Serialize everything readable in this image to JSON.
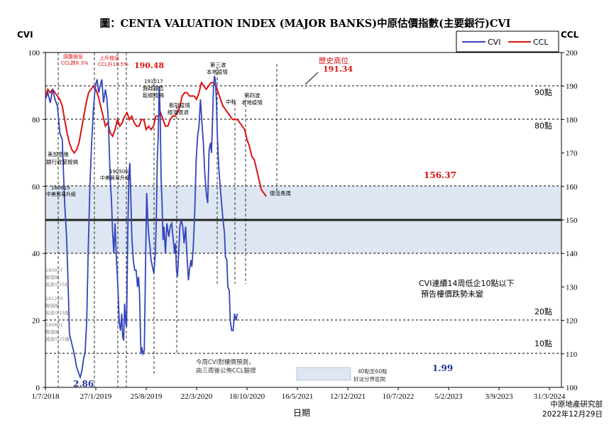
{
  "chart_data": {
    "type": "line",
    "title": "圖：CENTA VALUATION INDEX (MAJOR BANKS)中原估價指數(主要銀行)CVI",
    "xlabel": "日期",
    "y_left_label": "CVI",
    "y_right_label": "CCL",
    "ylim_left": [
      0,
      100
    ],
    "ylim_right": [
      100,
      200
    ],
    "y_left_ticks": [
      "0",
      "20",
      "40",
      "60",
      "80",
      "100"
    ],
    "y_right_ticks": [
      "100",
      "110",
      "120",
      "130",
      "140",
      "150",
      "160",
      "170",
      "180",
      "190",
      "200"
    ],
    "x_ticks": [
      "1/7/2018",
      "27/1/2019",
      "25/8/2019",
      "22/3/2020",
      "18/10/2020",
      "16/5/2021",
      "12/12/2021",
      "10/7/2022",
      "5/2/2023",
      "3/9/2023",
      "31/3/2024"
    ],
    "x_tick_days": [
      0,
      210,
      420,
      630,
      840,
      1050,
      1260,
      1470,
      1680,
      1890,
      2100
    ],
    "x_range_days": [
      0,
      2150
    ],
    "grid": false,
    "legend_position": "top-right",
    "series": [
      {
        "name": "CVI",
        "axis": "left",
        "color": "#3344bb",
        "points": [
          [
            0,
            86
          ],
          [
            10,
            88
          ],
          [
            20,
            85
          ],
          [
            30,
            89
          ],
          [
            40,
            86
          ],
          [
            50,
            84
          ],
          [
            60,
            76
          ],
          [
            70,
            74
          ],
          [
            80,
            55
          ],
          [
            88,
            45
          ],
          [
            95,
            30
          ],
          [
            100,
            16
          ],
          [
            110,
            13
          ],
          [
            120,
            10
          ],
          [
            130,
            6
          ],
          [
            140,
            4
          ],
          [
            145,
            3
          ],
          [
            152,
            5
          ],
          [
            160,
            9
          ],
          [
            165,
            10
          ],
          [
            172,
            20
          ],
          [
            178,
            40
          ],
          [
            185,
            60
          ],
          [
            192,
            72
          ],
          [
            200,
            83
          ],
          [
            208,
            90
          ],
          [
            215,
            92
          ],
          [
            222,
            88
          ],
          [
            228,
            90
          ],
          [
            235,
            92
          ],
          [
            242,
            85
          ],
          [
            250,
            89
          ],
          [
            256,
            86
          ],
          [
            262,
            80
          ],
          [
            270,
            62
          ],
          [
            275,
            56
          ],
          [
            280,
            46
          ],
          [
            285,
            40
          ],
          [
            290,
            49
          ],
          [
            296,
            38
          ],
          [
            302,
            30
          ],
          [
            308,
            19
          ],
          [
            313,
            17
          ],
          [
            318,
            22
          ],
          [
            322,
            15
          ],
          [
            326,
            14
          ],
          [
            330,
            25
          ],
          [
            335,
            19
          ],
          [
            338,
            18
          ],
          [
            343,
            46
          ],
          [
            348,
            64
          ],
          [
            352,
            67
          ],
          [
            356,
            56
          ],
          [
            360,
            45
          ],
          [
            366,
            38
          ],
          [
            372,
            35
          ],
          [
            378,
            35
          ],
          [
            384,
            30
          ],
          [
            388,
            33
          ],
          [
            392,
            28
          ],
          [
            398,
            10
          ],
          [
            402,
            12
          ],
          [
            406,
            10
          ],
          [
            412,
            11
          ],
          [
            418,
            40
          ],
          [
            422,
            58
          ],
          [
            428,
            48
          ],
          [
            432,
            44
          ],
          [
            436,
            42
          ],
          [
            440,
            38
          ],
          [
            446,
            36
          ],
          [
            452,
            34
          ],
          [
            458,
            40
          ],
          [
            462,
            50
          ],
          [
            466,
            68
          ],
          [
            470,
            75
          ],
          [
            474,
            90
          ],
          [
            478,
            82
          ],
          [
            482,
            62
          ],
          [
            486,
            55
          ],
          [
            490,
            44
          ],
          [
            494,
            48
          ],
          [
            500,
            40
          ],
          [
            506,
            49
          ],
          [
            514,
            45
          ],
          [
            520,
            48
          ],
          [
            526,
            49
          ],
          [
            530,
            46
          ],
          [
            534,
            43
          ],
          [
            538,
            40
          ],
          [
            542,
            43
          ],
          [
            546,
            35
          ],
          [
            550,
            33
          ],
          [
            554,
            38
          ],
          [
            560,
            48
          ],
          [
            566,
            50
          ],
          [
            572,
            48
          ],
          [
            578,
            43
          ],
          [
            584,
            48
          ],
          [
            590,
            39
          ],
          [
            596,
            32
          ],
          [
            600,
            35
          ],
          [
            606,
            38
          ],
          [
            610,
            36
          ],
          [
            616,
            42
          ],
          [
            622,
            52
          ],
          [
            628,
            68
          ],
          [
            634,
            75
          ],
          [
            640,
            78
          ],
          [
            646,
            86
          ],
          [
            652,
            79
          ],
          [
            658,
            73
          ],
          [
            664,
            64
          ],
          [
            670,
            58
          ],
          [
            676,
            55
          ],
          [
            682,
            71
          ],
          [
            688,
            73
          ],
          [
            692,
            70
          ],
          [
            696,
            79
          ],
          [
            700,
            89
          ],
          [
            704,
            93
          ],
          [
            708,
            92
          ],
          [
            712,
            86
          ],
          [
            716,
            76
          ],
          [
            722,
            66
          ],
          [
            728,
            60
          ],
          [
            734,
            55
          ],
          [
            740,
            50
          ],
          [
            746,
            46
          ],
          [
            750,
            39
          ],
          [
            756,
            38
          ],
          [
            760,
            30
          ],
          [
            766,
            29
          ],
          [
            770,
            20
          ],
          [
            776,
            17
          ],
          [
            782,
            17
          ],
          [
            788,
            22
          ],
          [
            794,
            20
          ],
          [
            800,
            22
          ]
        ]
      },
      {
        "name": "CCL",
        "axis": "right",
        "color": "#dd1111",
        "points": [
          [
            0,
            187
          ],
          [
            10,
            189
          ],
          [
            20,
            188
          ],
          [
            30,
            189
          ],
          [
            40,
            188
          ],
          [
            50,
            187
          ],
          [
            60,
            186
          ],
          [
            70,
            184
          ],
          [
            80,
            180
          ],
          [
            90,
            176
          ],
          [
            100,
            173
          ],
          [
            110,
            171
          ],
          [
            120,
            170
          ],
          [
            130,
            171
          ],
          [
            140,
            173
          ],
          [
            150,
            177
          ],
          [
            160,
            181
          ],
          [
            170,
            185
          ],
          [
            180,
            188
          ],
          [
            190,
            189
          ],
          [
            200,
            190
          ],
          [
            210,
            189
          ],
          [
            220,
            187
          ],
          [
            230,
            184
          ],
          [
            240,
            181
          ],
          [
            250,
            178
          ],
          [
            260,
            179
          ],
          [
            270,
            176
          ],
          [
            280,
            175
          ],
          [
            290,
            177
          ],
          [
            300,
            180
          ],
          [
            310,
            178
          ],
          [
            320,
            179
          ],
          [
            330,
            181
          ],
          [
            340,
            182
          ],
          [
            350,
            180
          ],
          [
            360,
            181
          ],
          [
            370,
            179
          ],
          [
            380,
            178
          ],
          [
            390,
            178
          ],
          [
            400,
            180
          ],
          [
            410,
            180
          ],
          [
            420,
            177
          ],
          [
            430,
            178
          ],
          [
            440,
            177
          ],
          [
            450,
            178
          ],
          [
            460,
            181
          ],
          [
            470,
            181
          ],
          [
            480,
            182
          ],
          [
            490,
            180
          ],
          [
            500,
            178
          ],
          [
            510,
            178
          ],
          [
            520,
            180
          ],
          [
            530,
            181
          ],
          [
            540,
            181
          ],
          [
            550,
            182
          ],
          [
            560,
            184
          ],
          [
            570,
            187
          ],
          [
            580,
            188
          ],
          [
            590,
            188
          ],
          [
            600,
            187
          ],
          [
            610,
            187
          ],
          [
            620,
            187
          ],
          [
            630,
            186
          ],
          [
            640,
            188
          ],
          [
            650,
            191
          ],
          [
            660,
            190
          ],
          [
            670,
            189
          ],
          [
            680,
            190
          ],
          [
            690,
            191
          ],
          [
            700,
            191
          ],
          [
            710,
            190
          ],
          [
            720,
            188
          ],
          [
            730,
            186
          ],
          [
            740,
            184
          ],
          [
            750,
            183
          ],
          [
            760,
            182
          ],
          [
            770,
            181
          ],
          [
            780,
            180
          ],
          [
            790,
            180
          ],
          [
            800,
            180
          ],
          [
            810,
            179
          ],
          [
            820,
            178
          ],
          [
            830,
            177
          ],
          [
            840,
            174
          ],
          [
            850,
            172
          ],
          [
            860,
            169
          ],
          [
            870,
            168
          ],
          [
            880,
            165
          ],
          [
            890,
            162
          ],
          [
            900,
            159
          ],
          [
            910,
            158
          ],
          [
            920,
            157
          ]
        ]
      }
    ],
    "reference_lines": [
      {
        "label": "90點",
        "value": 90
      },
      {
        "label": "80點",
        "value": 80
      },
      {
        "label": "20點",
        "value": 20
      },
      {
        "label": "10點",
        "value": 10
      }
    ],
    "band": {
      "from": 40,
      "to": 60,
      "color": "#dde6f2"
    },
    "midline": {
      "value": 50
    },
    "annotations": {
      "cvi_low": "2.86",
      "cvi_last": "1.99",
      "ccl_last": "156.37",
      "ccl_peak1": "190.48",
      "ccl_peak2": "191.34",
      "history_high": "歷史高位",
      "cvi_note_line1": "CVI連續14周低企10點以下",
      "cvi_note_line2": "預告樓價跌勢未變",
      "lead_note_line1": "今周CVI對樓價預測，",
      "lead_note_line2": "由三周後公佈CCL驗證",
      "box_label_line1": "40點至60點",
      "box_label_line2": "好淡分界區間",
      "event_a_line1": "調整按息",
      "event_a_line2": "CCL跌8.3%",
      "event_b_line1": "上升按息",
      "event_b_line2": "CCL升10.5%",
      "event_c_line1": "美加息後",
      "event_c_line2": "銀行收緊按揭",
      "event_d": "190506",
      "event_d2": "中美貿易升級",
      "event_e": "180615",
      "event_e2": "中美貿易升級",
      "event_f_line1": "191017",
      "event_f_line2": "施政報告",
      "event_f_line3": "鬆綁按揭",
      "event_g_line1": "新冠疫情",
      "event_g_line2": "經濟衰退",
      "event_h_line1": "第三波",
      "event_h_line2": "本地疫情",
      "event_i": "中秋",
      "event_j_line1": "第四波",
      "event_j_line2": "本地疫情",
      "event_k": "復活長周",
      "event_l_lines": [
        "180927",
        "聯儲局",
        "加息0.25厘"
      ],
      "event_m_lines": [
        "181220",
        "聯儲局",
        "加息0.25厘"
      ],
      "event_n_lines": [
        "190801",
        "聯儲局",
        "減息0.25厘"
      ]
    },
    "footer_line1": "中原地產研究部",
    "footer_line2": "2022年12月29日"
  }
}
